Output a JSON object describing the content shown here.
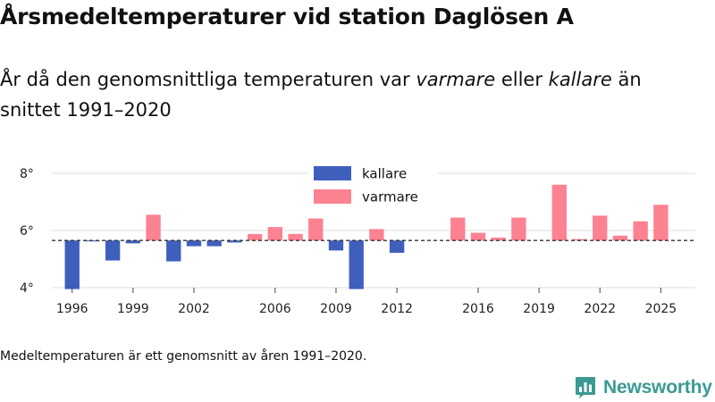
{
  "header": {
    "title": "Årsmedeltemperaturer vid station Daglösen A",
    "subtitle_part1": "År då den genomsnittliga temperaturen var ",
    "subtitle_warm": "varmare",
    "subtitle_part2": " eller ",
    "subtitle_cold": "kallare",
    "subtitle_part3": " än snittet 1991–2020"
  },
  "footnote": "Medeltemperaturen är ett genomsnitt av åren 1991–2020.",
  "brand": {
    "name": "Newsworthy",
    "icon": "bar-chart-logo-icon"
  },
  "colors": {
    "colder": "#3f5fbd",
    "warmer": "#fd8291",
    "grid": "#dddddd",
    "reference": "#333333",
    "brand": "#3b9a94"
  },
  "chart_data": {
    "type": "bar",
    "title": "Årsmedeltemperaturer vid station Daglösen A",
    "baseline": 5.65,
    "baseline_label": "snittet 1991–2020",
    "ylim": [
      4,
      8.5
    ],
    "yticks": [
      4,
      6,
      8
    ],
    "ytick_labels": [
      "4°",
      "6°",
      "8°"
    ],
    "xlim": [
      1995,
      2026.7
    ],
    "xticks": [
      1996,
      1999,
      2002,
      2006,
      2009,
      2012,
      2016,
      2019,
      2022,
      2025
    ],
    "legend": [
      {
        "key": "colder",
        "label": "kallare"
      },
      {
        "key": "warmer",
        "label": "varmare"
      }
    ],
    "legend_position": "top-center",
    "years": [
      1996,
      1997,
      1998,
      1999,
      2000,
      2001,
      2002,
      2003,
      2004,
      2005,
      2006,
      2007,
      2008,
      2009,
      2010,
      2011,
      2012,
      2015,
      2016,
      2017,
      2018,
      2020,
      2021,
      2022,
      2023,
      2024,
      2025
    ],
    "values": [
      3.95,
      5.62,
      4.95,
      5.55,
      6.55,
      4.92,
      5.45,
      5.45,
      5.58,
      5.88,
      6.12,
      5.88,
      6.42,
      5.3,
      3.95,
      6.05,
      5.22,
      6.45,
      5.92,
      5.75,
      6.45,
      7.6,
      5.7,
      6.52,
      5.82,
      6.32,
      6.9
    ]
  }
}
